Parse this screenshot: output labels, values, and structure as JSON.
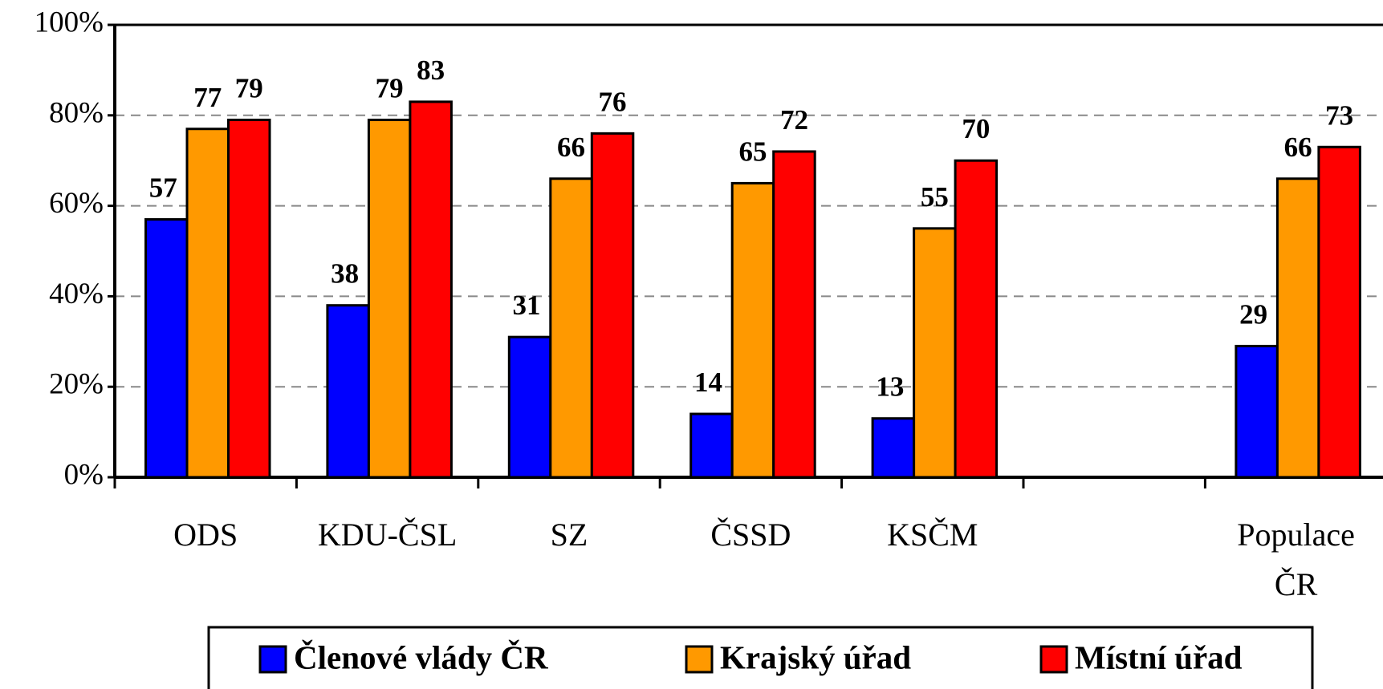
{
  "chart_data": {
    "type": "bar",
    "categories": [
      "ODS",
      "KDU-ČSL",
      "SZ",
      "ČSSD",
      "KSČM",
      null,
      "Populace ČR"
    ],
    "series": [
      {
        "name": "Členové vlády ČR",
        "color": "#0000ff",
        "values": [
          57,
          38,
          31,
          14,
          13,
          null,
          29
        ]
      },
      {
        "name": "Krajský úřad",
        "color": "#ff9900",
        "values": [
          77,
          79,
          66,
          65,
          55,
          null,
          66
        ]
      },
      {
        "name": "Místní úřad",
        "color": "#ff0000",
        "values": [
          79,
          83,
          76,
          72,
          70,
          null,
          73
        ]
      }
    ],
    "ylim": [
      0,
      100
    ],
    "yticks": [
      {
        "value": 0,
        "label": "0%"
      },
      {
        "value": 20,
        "label": "20%"
      },
      {
        "value": 40,
        "label": "40%"
      },
      {
        "value": 60,
        "label": "60%"
      },
      {
        "value": 80,
        "label": "80%"
      },
      {
        "value": 100,
        "label": "100%"
      }
    ],
    "grid": true
  }
}
